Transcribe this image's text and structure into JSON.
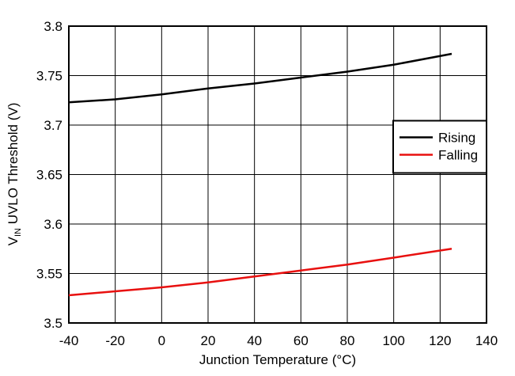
{
  "chart_data": {
    "type": "line",
    "xlabel": "Junction Temperature (°C)",
    "ylabel": {
      "main": "V",
      "sub": "IN",
      "rest": " UVLO Threshold (V)"
    },
    "x": [
      -40,
      -20,
      0,
      20,
      40,
      60,
      80,
      100,
      125
    ],
    "series": [
      {
        "name": "Rising",
        "color": "#000000",
        "values": [
          3.723,
          3.726,
          3.731,
          3.737,
          3.742,
          3.748,
          3.754,
          3.761,
          3.772
        ]
      },
      {
        "name": "Falling",
        "color": "#e8100f",
        "values": [
          3.528,
          3.532,
          3.536,
          3.541,
          3.547,
          3.553,
          3.559,
          3.566,
          3.575
        ]
      }
    ],
    "xlim": [
      -40,
      140
    ],
    "xticks": [
      -40,
      -20,
      0,
      20,
      40,
      60,
      80,
      100,
      120,
      140
    ],
    "ylim": [
      3.5,
      3.8
    ],
    "yticks": [
      3.5,
      3.55,
      3.6,
      3.65,
      3.7,
      3.75,
      3.8
    ],
    "grid": true,
    "legend": "right"
  }
}
